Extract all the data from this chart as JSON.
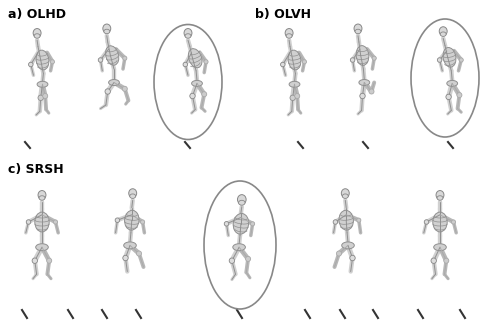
{
  "title_a": "a) OLHD",
  "title_b": "b) OLVH",
  "title_c": "c) SRSH",
  "bg_color": "#ffffff",
  "ellipse_color": "#888888",
  "ellipse_lw": 1.2,
  "tick_color": "#000000",
  "label_fontsize": 9,
  "label_fontweight": "bold",
  "fig_width": 5.0,
  "fig_height": 3.28,
  "dpi": 100,
  "bone_color": "#c8c8c8",
  "bone_edge": "#888888",
  "bone_lw": 0.8
}
